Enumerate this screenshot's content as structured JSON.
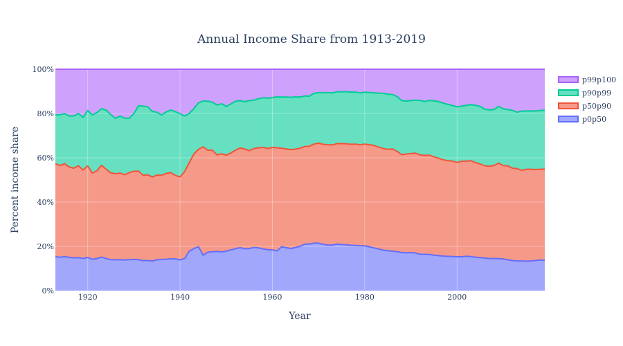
{
  "chart_data": {
    "type": "area",
    "title": "Annual Income Share from 1913-2019",
    "xlabel": "Year",
    "ylabel": "Percent income share",
    "stack": "cumulative",
    "xlim": [
      1913,
      2019
    ],
    "ylim": [
      0,
      100
    ],
    "x_ticks": [
      1920,
      1940,
      1960,
      1980,
      2000
    ],
    "y_ticks": [
      0,
      20,
      40,
      60,
      80,
      100
    ],
    "y_tick_labels": [
      "0%",
      "20%",
      "40%",
      "60%",
      "80%",
      "100%"
    ],
    "grid": true,
    "legend_position": "top-right",
    "legend_order": [
      "p99p100",
      "p90p99",
      "p50p90",
      "p0p50"
    ],
    "x": [
      1913,
      1914,
      1915,
      1916,
      1917,
      1918,
      1919,
      1920,
      1921,
      1922,
      1923,
      1924,
      1925,
      1926,
      1927,
      1928,
      1929,
      1930,
      1931,
      1932,
      1933,
      1934,
      1935,
      1936,
      1937,
      1938,
      1939,
      1940,
      1941,
      1942,
      1943,
      1944,
      1945,
      1946,
      1947,
      1948,
      1949,
      1950,
      1951,
      1952,
      1953,
      1954,
      1955,
      1956,
      1957,
      1958,
      1959,
      1960,
      1961,
      1962,
      1963,
      1964,
      1965,
      1966,
      1967,
      1968,
      1969,
      1970,
      1971,
      1972,
      1973,
      1974,
      1975,
      1976,
      1977,
      1978,
      1979,
      1980,
      1981,
      1982,
      1983,
      1984,
      1985,
      1986,
      1987,
      1988,
      1989,
      1990,
      1991,
      1992,
      1993,
      1994,
      1995,
      1996,
      1997,
      1998,
      1999,
      2000,
      2001,
      2002,
      2003,
      2004,
      2005,
      2006,
      2007,
      2008,
      2009,
      2010,
      2011,
      2012,
      2013,
      2014,
      2015,
      2016,
      2017,
      2018,
      2019
    ],
    "series": [
      {
        "name": "p0p50",
        "color": "#636efa",
        "values": [
          15.3,
          15.1,
          15.4,
          15.0,
          14.8,
          14.9,
          14.5,
          15.0,
          14.2,
          14.5,
          15.1,
          14.5,
          14.0,
          13.9,
          14.0,
          13.8,
          14.0,
          14.1,
          14.0,
          13.5,
          13.6,
          13.4,
          13.9,
          14.1,
          14.2,
          14.4,
          14.3,
          13.9,
          14.5,
          17.8,
          19.0,
          19.8,
          16.0,
          17.3,
          17.6,
          17.7,
          17.5,
          17.8,
          18.4,
          18.9,
          19.4,
          18.9,
          19.0,
          19.5,
          19.3,
          18.8,
          18.5,
          18.4,
          17.9,
          19.8,
          19.4,
          19.0,
          19.5,
          20.0,
          21.0,
          21.0,
          21.5,
          21.4,
          20.9,
          20.6,
          20.6,
          21.0,
          20.8,
          20.7,
          20.5,
          20.4,
          20.3,
          20.2,
          19.8,
          19.3,
          18.8,
          18.3,
          18.0,
          17.8,
          17.6,
          17.2,
          17.1,
          17.2,
          17.0,
          16.4,
          16.4,
          16.3,
          16.0,
          15.8,
          15.6,
          15.5,
          15.4,
          15.3,
          15.3,
          15.5,
          15.4,
          15.1,
          14.9,
          14.7,
          14.5,
          14.5,
          14.5,
          14.3,
          13.9,
          13.6,
          13.4,
          13.4,
          13.3,
          13.4,
          13.6,
          13.8,
          13.7
        ]
      },
      {
        "name": "p50p90",
        "color": "#ef553b",
        "values": [
          42.0,
          41.4,
          41.9,
          40.8,
          40.5,
          41.5,
          40.0,
          41.3,
          38.9,
          39.6,
          41.5,
          40.3,
          39.2,
          38.9,
          39.1,
          38.5,
          39.3,
          39.8,
          40.0,
          38.6,
          38.7,
          37.9,
          38.3,
          38.0,
          38.7,
          38.9,
          37.7,
          37.5,
          39.3,
          40.0,
          42.7,
          44.0,
          48.9,
          46.1,
          45.8,
          43.6,
          44.3,
          43.4,
          43.8,
          44.5,
          45.0,
          45.1,
          44.2,
          44.7,
          45.2,
          45.9,
          45.7,
          46.3,
          46.6,
          44.5,
          44.6,
          44.7,
          44.4,
          44.3,
          44.1,
          44.2,
          44.7,
          45.2,
          45.2,
          45.3,
          45.2,
          45.4,
          45.6,
          45.6,
          45.6,
          45.8,
          45.6,
          46.0,
          46.1,
          46.3,
          46.0,
          45.9,
          45.8,
          46.2,
          45.3,
          44.2,
          44.6,
          44.7,
          45.1,
          44.9,
          44.7,
          44.9,
          44.4,
          44.0,
          43.5,
          43.2,
          43.1,
          42.6,
          43.1,
          43.0,
          43.3,
          42.7,
          42.3,
          41.7,
          41.7,
          42.0,
          43.1,
          42.2,
          42.4,
          41.7,
          41.7,
          40.9,
          41.5,
          41.4,
          41.1,
          41.0,
          41.2
        ]
      },
      {
        "name": "p90p99",
        "color": "#00cc96",
        "values": [
          22.1,
          22.9,
          22.6,
          23.0,
          23.6,
          23.6,
          23.7,
          25.0,
          26.2,
          26.3,
          25.6,
          26.7,
          26.3,
          25.0,
          25.7,
          25.6,
          24.5,
          26.0,
          29.5,
          31.2,
          30.7,
          29.6,
          28.4,
          27.2,
          27.8,
          28.3,
          28.8,
          28.5,
          25.0,
          22.2,
          20.5,
          21.0,
          20.7,
          22.2,
          21.7,
          22.5,
          22.6,
          22.0,
          22.1,
          22.1,
          21.4,
          21.3,
          22.6,
          21.8,
          22.2,
          22.4,
          22.7,
          22.5,
          23.0,
          23.1,
          23.4,
          23.6,
          23.6,
          23.1,
          22.8,
          22.6,
          22.9,
          22.8,
          23.3,
          23.5,
          23.5,
          23.4,
          23.4,
          23.5,
          23.6,
          23.5,
          23.4,
          23.4,
          23.6,
          23.7,
          24.4,
          24.9,
          24.9,
          24.6,
          24.8,
          24.4,
          23.9,
          23.9,
          23.9,
          24.6,
          24.3,
          24.7,
          25.3,
          25.6,
          25.6,
          25.4,
          25.1,
          25.1,
          24.9,
          25.2,
          25.3,
          25.9,
          26.0,
          25.6,
          25.4,
          25.3,
          25.6,
          25.6,
          25.5,
          26.1,
          25.5,
          26.8,
          26.3,
          26.4,
          26.4,
          26.5,
          26.6
        ]
      },
      {
        "name": "p99p100",
        "color": "#ab63fa",
        "values": [
          20.6,
          20.6,
          20.1,
          21.2,
          21.1,
          20.0,
          21.8,
          18.7,
          20.7,
          19.6,
          17.8,
          18.5,
          20.5,
          22.2,
          21.2,
          22.1,
          22.2,
          20.1,
          16.5,
          16.7,
          17.0,
          19.1,
          19.4,
          20.7,
          19.3,
          18.4,
          19.2,
          20.1,
          21.2,
          20.0,
          17.8,
          15.2,
          14.4,
          14.4,
          14.9,
          16.2,
          15.6,
          16.8,
          15.7,
          14.5,
          14.2,
          14.7,
          14.2,
          14.0,
          13.3,
          12.9,
          13.1,
          12.8,
          12.5,
          12.6,
          12.6,
          12.7,
          12.5,
          12.6,
          12.1,
          12.2,
          10.9,
          10.6,
          10.6,
          10.6,
          10.7,
          10.2,
          10.2,
          10.2,
          10.3,
          10.3,
          10.7,
          10.4,
          10.5,
          10.7,
          10.8,
          10.9,
          11.3,
          11.4,
          12.3,
          14.2,
          14.4,
          14.2,
          14.0,
          14.1,
          14.6,
          14.1,
          14.3,
          14.6,
          15.3,
          15.9,
          16.4,
          17.0,
          16.7,
          16.3,
          16.0,
          16.3,
          16.8,
          18.0,
          18.4,
          18.2,
          16.8,
          17.9,
          18.2,
          18.6,
          19.4,
          18.9,
          18.9,
          18.8,
          18.9,
          18.7,
          18.5
        ]
      }
    ]
  }
}
